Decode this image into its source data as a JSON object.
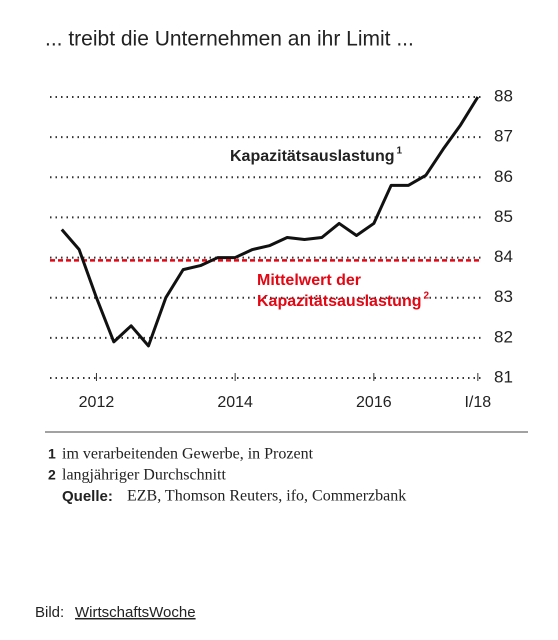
{
  "chart_data": {
    "type": "line",
    "title": "... treibt die Unternehmen an ihr Limit ...",
    "x": [
      2012.0,
      2012.25,
      2012.5,
      2012.75,
      2013.0,
      2013.25,
      2013.5,
      2013.75,
      2014.0,
      2014.25,
      2014.5,
      2014.75,
      2015.0,
      2015.25,
      2015.5,
      2015.75,
      2016.0,
      2016.25,
      2016.5,
      2016.75,
      2017.0,
      2017.25,
      2017.5,
      2017.75,
      2018.0
    ],
    "series": [
      {
        "name": "Kapazitätsauslastung",
        "note": "1",
        "color": "#111111",
        "values": [
          84.7,
          84.2,
          83.0,
          81.9,
          82.3,
          81.8,
          83.0,
          83.7,
          83.8,
          84.0,
          84.0,
          84.2,
          84.3,
          84.5,
          84.45,
          84.5,
          84.85,
          84.55,
          84.85,
          85.8,
          85.8,
          86.05,
          86.7,
          87.3,
          88.0
        ]
      }
    ],
    "mean_line": {
      "value": 83.93,
      "color": "#e30613",
      "label": [
        "Mittelwert der",
        "Kapazitätsauslastung"
      ],
      "note": "2"
    },
    "xlim": [
      2011.83,
      2018.06
    ],
    "xticks": [
      {
        "value": 2012.5,
        "label": "2012"
      },
      {
        "value": 2014.5,
        "label": "2014"
      },
      {
        "value": 2016.5,
        "label": "2016"
      },
      {
        "value": 2018.0,
        "label": "I/18"
      }
    ],
    "ylim": [
      81,
      88
    ],
    "yticks": [
      81,
      82,
      83,
      84,
      85,
      86,
      87,
      88
    ],
    "grid": true,
    "footnotes": [
      {
        "number": "1",
        "text": "im verarbeitenden Gewerbe, in Prozent"
      },
      {
        "number": "2",
        "text": "langjähriger Durchschnitt"
      }
    ],
    "source": {
      "label": "Quelle:",
      "text": "EZB, Thomson Reuters, ifo, Commerzbank"
    },
    "credit": {
      "label": "Bild:",
      "link": "WirtschaftsWoche"
    }
  }
}
